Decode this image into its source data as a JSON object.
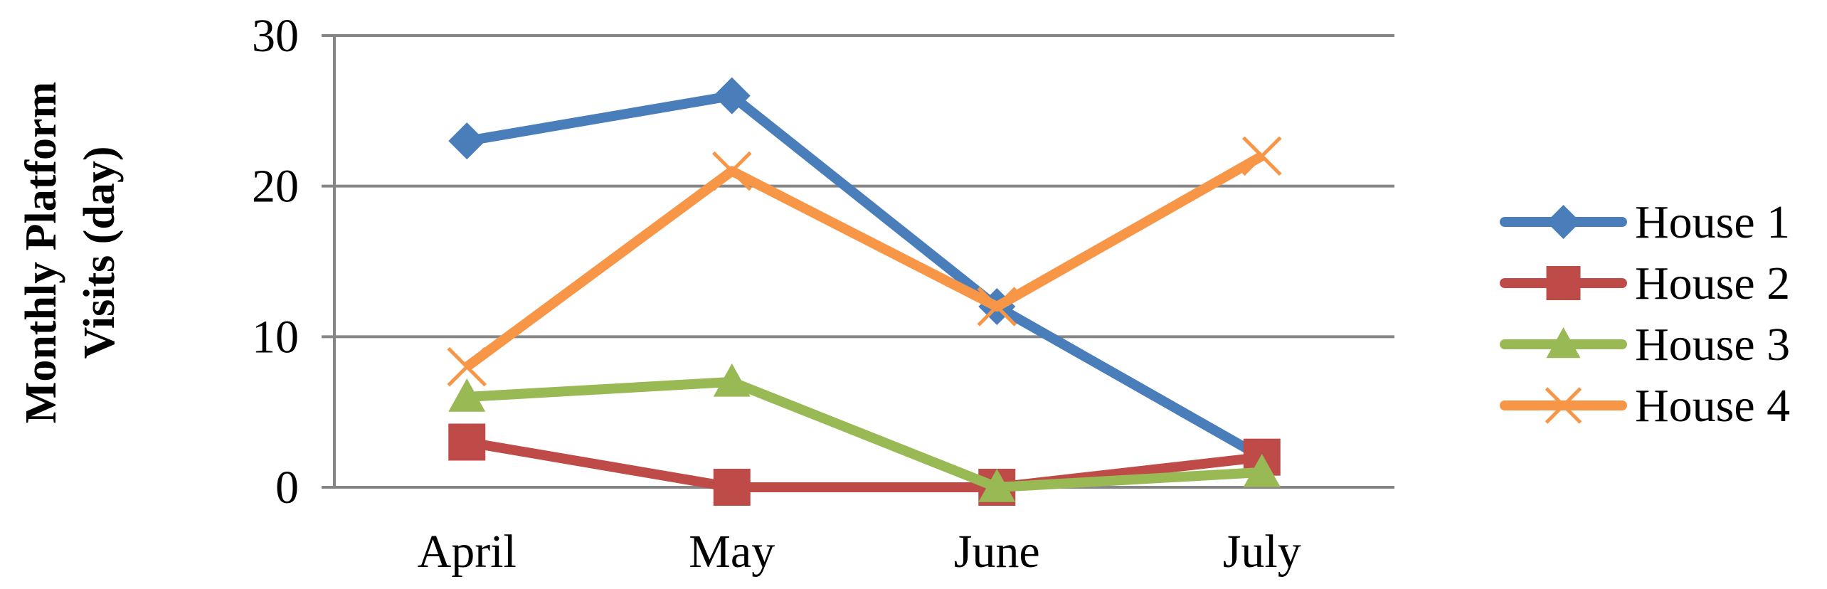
{
  "chart_data": {
    "type": "line",
    "title": "",
    "xlabel": "",
    "ylabel": [
      "Monthly Platform",
      "Visits (day)"
    ],
    "categories": [
      "April",
      "May",
      "June",
      "July"
    ],
    "y_ticks": [
      "0",
      "10",
      "20",
      "30"
    ],
    "ylim": [
      0,
      30
    ],
    "grid": "horizontal",
    "legend": "right",
    "series": [
      {
        "name": "House 1",
        "values": [
          23,
          26,
          12,
          2
        ],
        "color": "#4a7ebb",
        "marker": "diamond"
      },
      {
        "name": "House 2",
        "values": [
          3,
          0,
          0,
          2
        ],
        "color": "#be4b48",
        "marker": "square"
      },
      {
        "name": "House 3",
        "values": [
          6,
          7,
          0,
          1
        ],
        "color": "#98b954",
        "marker": "triangle"
      },
      {
        "name": "House 4",
        "values": [
          8,
          21,
          12,
          22
        ],
        "color": "#f79646",
        "marker": "x"
      }
    ]
  }
}
